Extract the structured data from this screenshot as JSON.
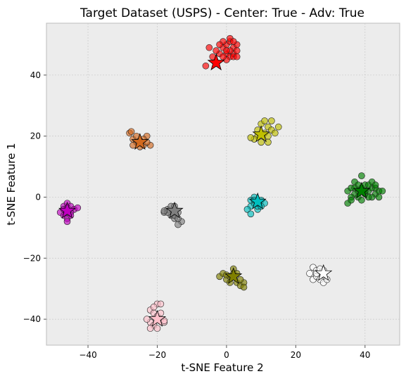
{
  "chart_data": {
    "type": "scatter",
    "title": "Target Dataset (USPS) - Center: True - Adv: True",
    "xlabel": "t-SNE Feature 2",
    "ylabel": "t-SNE Feature 1",
    "xlim": [
      -52,
      50
    ],
    "ylim": [
      -48.5,
      57
    ],
    "xticks": [
      -40,
      -20,
      0,
      20,
      40
    ],
    "yticks": [
      -40,
      -20,
      0,
      20,
      40
    ],
    "xtick_labels": [
      "−40",
      "−20",
      "0",
      "20",
      "40"
    ],
    "ytick_labels": [
      "−40",
      "−20",
      "0",
      "20",
      "40"
    ],
    "grid": true,
    "background": "#ececec",
    "clusters": [
      {
        "color": "#ff0000",
        "center": [
          -3,
          44
        ],
        "points": [
          [
            -1,
            49
          ],
          [
            0,
            50
          ],
          [
            1,
            51
          ],
          [
            2,
            49
          ],
          [
            -2,
            47
          ],
          [
            -3,
            48
          ],
          [
            0,
            47
          ],
          [
            1,
            46
          ],
          [
            2,
            47
          ],
          [
            3,
            48
          ],
          [
            -1,
            51
          ],
          [
            1,
            48
          ],
          [
            -5,
            49
          ],
          [
            -6,
            43
          ],
          [
            -4,
            46
          ],
          [
            0,
            45
          ],
          [
            2,
            46
          ],
          [
            3,
            50
          ],
          [
            -2,
            50
          ],
          [
            1,
            52
          ],
          [
            3,
            46
          ],
          [
            -1,
            46
          ],
          [
            0,
            48
          ],
          [
            2,
            51
          ]
        ]
      },
      {
        "color": "#bfbf00",
        "center": [
          10,
          20.5
        ],
        "points": [
          [
            10,
            24
          ],
          [
            12,
            23
          ],
          [
            13,
            25
          ],
          [
            15,
            23
          ],
          [
            11,
            21
          ],
          [
            9,
            20
          ],
          [
            8,
            19
          ],
          [
            7,
            19.5
          ],
          [
            12,
            18
          ],
          [
            10,
            18
          ],
          [
            13,
            22
          ],
          [
            11,
            25
          ],
          [
            9,
            22
          ],
          [
            12,
            20
          ],
          [
            14,
            21
          ]
        ]
      },
      {
        "color": "#d2691e",
        "center": [
          -25,
          18
        ],
        "points": [
          [
            -28,
            21
          ],
          [
            -27,
            19
          ],
          [
            -26,
            18
          ],
          [
            -24,
            17
          ],
          [
            -23,
            20
          ],
          [
            -22,
            17
          ],
          [
            -27,
            17
          ],
          [
            -25,
            16.5
          ],
          [
            -26,
            20
          ],
          [
            -24,
            19
          ],
          [
            -27.5,
            21.5
          ],
          [
            -25,
            18.5
          ],
          [
            -23,
            18
          ]
        ]
      },
      {
        "color": "#008000",
        "center": [
          39,
          2
        ],
        "points": [
          [
            35,
            2
          ],
          [
            36,
            3
          ],
          [
            37,
            1
          ],
          [
            38,
            2
          ],
          [
            39,
            3
          ],
          [
            40,
            1
          ],
          [
            41,
            2
          ],
          [
            42,
            3
          ],
          [
            43,
            1
          ],
          [
            44,
            2
          ],
          [
            36,
            0
          ],
          [
            38,
            0
          ],
          [
            40,
            4
          ],
          [
            42,
            0
          ],
          [
            37,
            5
          ],
          [
            39,
            7
          ],
          [
            41,
            4
          ],
          [
            43,
            3
          ],
          [
            44,
            0
          ],
          [
            38,
            4
          ],
          [
            40,
            2
          ],
          [
            35,
            -2
          ],
          [
            36,
            -1
          ],
          [
            42,
            5
          ],
          [
            45,
            2
          ],
          [
            39,
            -1
          ],
          [
            41,
            0
          ],
          [
            37,
            3
          ],
          [
            43,
            4
          ]
        ]
      },
      {
        "color": "#00bfbf",
        "center": [
          9,
          -1.5
        ],
        "points": [
          [
            7,
            -3
          ],
          [
            8,
            -2
          ],
          [
            9,
            -4
          ],
          [
            10,
            -1
          ],
          [
            6,
            -4
          ],
          [
            11,
            -2
          ],
          [
            8,
            0
          ],
          [
            9,
            -3
          ],
          [
            7,
            -1
          ],
          [
            10,
            -3
          ],
          [
            7,
            -5.5
          ],
          [
            8,
            -1
          ],
          [
            9,
            -2
          ]
        ]
      },
      {
        "color": "#bf00bf",
        "center": [
          -46,
          -4.5
        ],
        "points": [
          [
            -47,
            -3
          ],
          [
            -46,
            -2
          ],
          [
            -45,
            -3
          ],
          [
            -44,
            -4
          ],
          [
            -43,
            -3.5
          ],
          [
            -48,
            -5
          ],
          [
            -47,
            -6
          ],
          [
            -46,
            -7
          ],
          [
            -45,
            -5
          ],
          [
            -46,
            -8
          ],
          [
            -47,
            -4
          ],
          [
            -45,
            -6
          ],
          [
            -46,
            -3.5
          ]
        ]
      },
      {
        "color": "#808080",
        "center": [
          -15,
          -4.5
        ],
        "points": [
          [
            -18,
            -5
          ],
          [
            -17,
            -4
          ],
          [
            -16,
            -6
          ],
          [
            -15,
            -7
          ],
          [
            -14,
            -5
          ],
          [
            -13,
            -8
          ],
          [
            -14,
            -9
          ],
          [
            -16,
            -3
          ],
          [
            -17,
            -5
          ],
          [
            -15,
            -6
          ],
          [
            -18,
            -4.5
          ],
          [
            -14,
            -7
          ],
          [
            -15,
            -3
          ]
        ]
      },
      {
        "color": "#808000",
        "center": [
          2,
          -26
        ],
        "points": [
          [
            -2,
            -26
          ],
          [
            -1,
            -25
          ],
          [
            0,
            -27
          ],
          [
            1,
            -26
          ],
          [
            2,
            -25
          ],
          [
            3,
            -28
          ],
          [
            4,
            -29
          ],
          [
            5,
            -28
          ],
          [
            2,
            -23.5
          ],
          [
            1,
            -28
          ],
          [
            4,
            -27
          ],
          [
            3,
            -25
          ],
          [
            5,
            -29.5
          ],
          [
            0,
            -25.5
          ]
        ]
      },
      {
        "color": "#ffffff",
        "center": [
          28,
          -25
        ],
        "points": [
          [
            25,
            -23
          ],
          [
            26,
            -24
          ],
          [
            27,
            -25
          ],
          [
            28,
            -26
          ],
          [
            24,
            -25
          ],
          [
            25,
            -27
          ],
          [
            26,
            -26
          ],
          [
            27,
            -27
          ],
          [
            28,
            -28
          ],
          [
            29,
            -27
          ],
          [
            28,
            -24
          ],
          [
            26,
            -25
          ],
          [
            27,
            -23.5
          ]
        ]
      },
      {
        "color": "#ffc0cb",
        "center": [
          -20,
          -40
        ],
        "points": [
          [
            -22,
            -37
          ],
          [
            -21,
            -38
          ],
          [
            -20,
            -39
          ],
          [
            -19,
            -40
          ],
          [
            -18,
            -41
          ],
          [
            -22,
            -41
          ],
          [
            -21,
            -42
          ],
          [
            -20,
            -43
          ],
          [
            -19,
            -38
          ],
          [
            -23,
            -40
          ],
          [
            -20,
            -35
          ],
          [
            -19,
            -35
          ],
          [
            -21,
            -36
          ],
          [
            -18,
            -40.5
          ],
          [
            -22,
            -43
          ]
        ]
      }
    ]
  }
}
